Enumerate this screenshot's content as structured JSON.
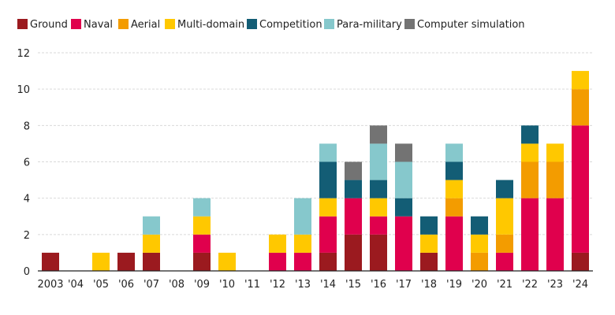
{
  "chart_data": {
    "type": "bar",
    "stacked": true,
    "title": "",
    "xlabel": "",
    "ylabel": "",
    "ylim": [
      0,
      12
    ],
    "yticks": [
      0,
      2,
      4,
      6,
      8,
      10,
      12
    ],
    "grid": true,
    "legend_position": "top-left",
    "categories": [
      "2003",
      "'04",
      "'05",
      "'06",
      "'07",
      "'08",
      "'09",
      "'10",
      "'11",
      "'12",
      "'13",
      "'14",
      "'15",
      "'16",
      "'17",
      "'18",
      "'19",
      "'20",
      "'21",
      "'22",
      "'23",
      "'24"
    ],
    "series": [
      {
        "name": "Ground",
        "color": "#9b1a1f",
        "values": [
          1,
          0,
          0,
          1,
          1,
          0,
          1,
          0,
          0,
          0,
          0,
          1,
          2,
          2,
          0,
          1,
          0,
          0,
          0,
          0,
          0,
          1
        ]
      },
      {
        "name": "Naval",
        "color": "#e0004d",
        "values": [
          0,
          0,
          0,
          0,
          0,
          0,
          1,
          0,
          0,
          1,
          1,
          2,
          2,
          1,
          3,
          0,
          3,
          0,
          1,
          4,
          4,
          7
        ]
      },
      {
        "name": "Aerial",
        "color": "#f39c00",
        "values": [
          0,
          0,
          0,
          0,
          0,
          0,
          0,
          0,
          0,
          0,
          0,
          0,
          0,
          0,
          0,
          0,
          1,
          1,
          1,
          2,
          2,
          2
        ]
      },
      {
        "name": "Multi-domain",
        "color": "#ffc800",
        "values": [
          0,
          0,
          1,
          0,
          1,
          0,
          1,
          1,
          0,
          1,
          1,
          1,
          0,
          1,
          0,
          1,
          1,
          1,
          2,
          1,
          1,
          1
        ]
      },
      {
        "name": "Competition",
        "color": "#135d75",
        "values": [
          0,
          0,
          0,
          0,
          0,
          0,
          0,
          0,
          0,
          0,
          0,
          2,
          1,
          1,
          1,
          1,
          1,
          1,
          1,
          1,
          0,
          0
        ]
      },
      {
        "name": "Para-military",
        "color": "#86c8cc",
        "values": [
          0,
          0,
          0,
          0,
          1,
          0,
          1,
          0,
          0,
          0,
          2,
          1,
          0,
          2,
          2,
          0,
          1,
          0,
          0,
          0,
          0,
          0
        ]
      },
      {
        "name": "Computer simulation",
        "color": "#737373",
        "values": [
          0,
          0,
          0,
          0,
          0,
          0,
          0,
          0,
          0,
          0,
          0,
          0,
          1,
          1,
          1,
          0,
          0,
          0,
          0,
          0,
          0,
          0
        ]
      }
    ]
  }
}
